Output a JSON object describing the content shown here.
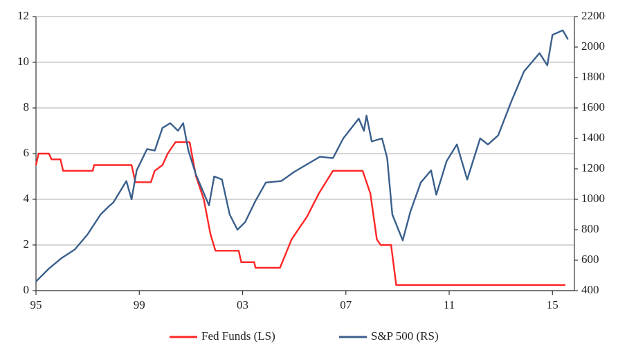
{
  "chart_data": {
    "type": "line",
    "xlim": [
      1995,
      2015.85
    ],
    "xticks": [
      {
        "value": 1995,
        "label": "95"
      },
      {
        "value": 1999,
        "label": "99"
      },
      {
        "value": 2003,
        "label": "03"
      },
      {
        "value": 2007,
        "label": "07"
      },
      {
        "value": 2011,
        "label": "11"
      },
      {
        "value": 2015,
        "label": "15"
      }
    ],
    "ylim": [
      0,
      12
    ],
    "yticks": [
      0,
      2,
      4,
      6,
      8,
      10,
      12
    ],
    "y2lim": [
      400,
      2200
    ],
    "y2ticks": [
      400,
      600,
      800,
      1000,
      1200,
      1400,
      1600,
      1800,
      2000,
      2200
    ],
    "grid": true,
    "legend": "bottom",
    "series": [
      {
        "name": "Fed Funds (LS)",
        "color": "#ff2626",
        "x": [
          1995.0,
          1995.1,
          1995.5,
          1995.6,
          1995.95,
          1996.05,
          1997.2,
          1997.25,
          1998.7,
          1998.85,
          1999.45,
          1999.6,
          1999.9,
          2000.1,
          2000.4,
          2000.95,
          2001.2,
          2001.5,
          2001.75,
          2001.95,
          2002.85,
          2002.95,
          2003.45,
          2003.5,
          2004.45,
          2004.9,
          2005.5,
          2005.95,
          2006.5,
          2007.65,
          2007.95,
          2008.2,
          2008.35,
          2008.75,
          2008.95,
          2015.5
        ],
        "values": [
          5.5,
          6.0,
          6.0,
          5.75,
          5.75,
          5.25,
          5.25,
          5.5,
          5.5,
          4.75,
          4.75,
          5.25,
          5.5,
          6.0,
          6.5,
          6.5,
          5.0,
          4.0,
          2.5,
          1.75,
          1.75,
          1.25,
          1.25,
          1.0,
          1.0,
          2.25,
          3.25,
          4.25,
          5.25,
          5.25,
          4.25,
          2.25,
          2.0,
          2.0,
          0.25,
          0.25
        ]
      },
      {
        "name": "S&P 500 (RS)",
        "color": "#3a5f8c",
        "axis": "y2",
        "x": [
          1995.0,
          1995.5,
          1996.0,
          1996.5,
          1997.0,
          1997.5,
          1997.8,
          1998.0,
          1998.5,
          1998.7,
          1998.9,
          1999.3,
          1999.6,
          1999.9,
          2000.2,
          2000.5,
          2000.7,
          2000.9,
          2001.2,
          2001.7,
          2001.9,
          2002.2,
          2002.5,
          2002.8,
          2003.1,
          2003.5,
          2003.9,
          2004.5,
          2005.0,
          2005.5,
          2006.0,
          2006.5,
          2006.9,
          2007.5,
          2007.7,
          2007.8,
          2008.0,
          2008.4,
          2008.6,
          2008.8,
          2009.2,
          2009.5,
          2009.9,
          2010.3,
          2010.5,
          2010.9,
          2011.3,
          2011.7,
          2012.2,
          2012.5,
          2012.9,
          2013.4,
          2013.9,
          2014.5,
          2014.8,
          2015.0,
          2015.4,
          2015.6
        ],
        "values": [
          460,
          545,
          615,
          670,
          770,
          900,
          950,
          980,
          1120,
          1000,
          1190,
          1330,
          1320,
          1469,
          1500,
          1450,
          1500,
          1320,
          1160,
          960,
          1150,
          1130,
          900,
          800,
          850,
          990,
          1110,
          1120,
          1180,
          1230,
          1280,
          1270,
          1400,
          1530,
          1450,
          1550,
          1380,
          1400,
          1270,
          900,
          730,
          920,
          1110,
          1190,
          1030,
          1250,
          1360,
          1130,
          1400,
          1360,
          1420,
          1640,
          1840,
          1960,
          1880,
          2080,
          2110,
          2050
        ]
      }
    ]
  }
}
